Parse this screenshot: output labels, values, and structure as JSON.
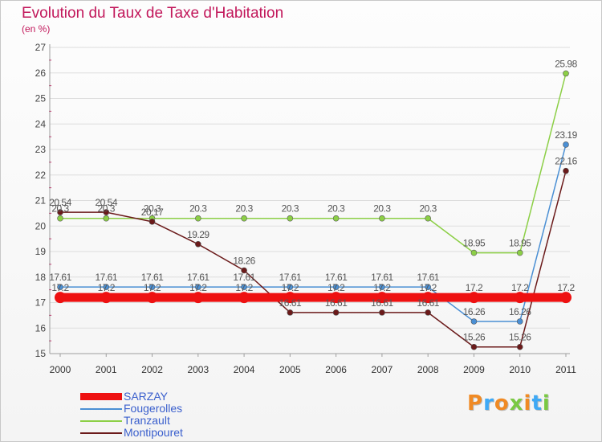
{
  "title": "Evolution du Taux de Taxe d'Habitation",
  "unit_label": "(en %)",
  "brand": {
    "text": "Proxiti"
  },
  "colors": {
    "title": "#c2185b",
    "axis": "#9e9e9e",
    "grid": "#dddddd",
    "legend_text": "#3a5fcd",
    "tick_marks": "#c2185b"
  },
  "chart_data": {
    "type": "line",
    "title": "Evolution du Taux de Taxe d'Habitation",
    "ylabel": "(en %)",
    "xlabel": "",
    "x": [
      "2000",
      "2001",
      "2002",
      "2003",
      "2004",
      "2005",
      "2006",
      "2007",
      "2008",
      "2009",
      "2010",
      "2011"
    ],
    "yticks": [
      15,
      16,
      17,
      18,
      19,
      20,
      21,
      22,
      23,
      24,
      25,
      26,
      27
    ],
    "ylim": [
      15,
      27
    ],
    "grid": true,
    "legend_position": "bottom-left",
    "series": [
      {
        "name": "SARZAY",
        "color": "#ee1111",
        "emphasis": true,
        "values": [
          17.2,
          17.2,
          17.2,
          17.2,
          17.2,
          17.2,
          17.2,
          17.2,
          17.2,
          17.2,
          17.2,
          17.2
        ],
        "labels": [
          "17.2",
          "17.2",
          "17.2",
          "17.2",
          "17.2",
          "17.2",
          "17.2",
          "17.2",
          "17.2",
          "17.2",
          "17.2",
          "17.2"
        ]
      },
      {
        "name": "Fougerolles",
        "color": "#4a8fd4",
        "values": [
          17.61,
          17.61,
          17.61,
          17.61,
          17.61,
          17.61,
          17.61,
          17.61,
          17.61,
          16.26,
          16.26,
          23.19
        ],
        "labels": [
          "17.61",
          "17.61",
          "17.61",
          "17.61",
          "17.61",
          "17.61",
          "17.61",
          "17.61",
          "17.61",
          "16.26",
          "16.26",
          "23.19"
        ]
      },
      {
        "name": "Tranzault",
        "color": "#8ccf46",
        "values": [
          20.3,
          20.3,
          20.3,
          20.3,
          20.3,
          20.3,
          20.3,
          20.3,
          20.3,
          18.95,
          18.95,
          25.98
        ],
        "labels": [
          "20.3",
          "20.3",
          "20.3",
          "20.3",
          "20.3",
          "20.3",
          "20.3",
          "20.3",
          "20.3",
          "18.95",
          "18.95",
          "25.98"
        ]
      },
      {
        "name": "Montipouret",
        "color": "#6b1a1a",
        "values": [
          20.54,
          20.54,
          20.17,
          19.29,
          18.26,
          16.61,
          16.61,
          16.61,
          16.61,
          15.26,
          15.26,
          22.16
        ],
        "labels": [
          "20.54",
          "20.54",
          "20.17",
          "19.29",
          "18.26",
          "16.61",
          "16.61",
          "16.61",
          "16.61",
          "15.26",
          "15.26",
          "22.16"
        ]
      }
    ]
  }
}
